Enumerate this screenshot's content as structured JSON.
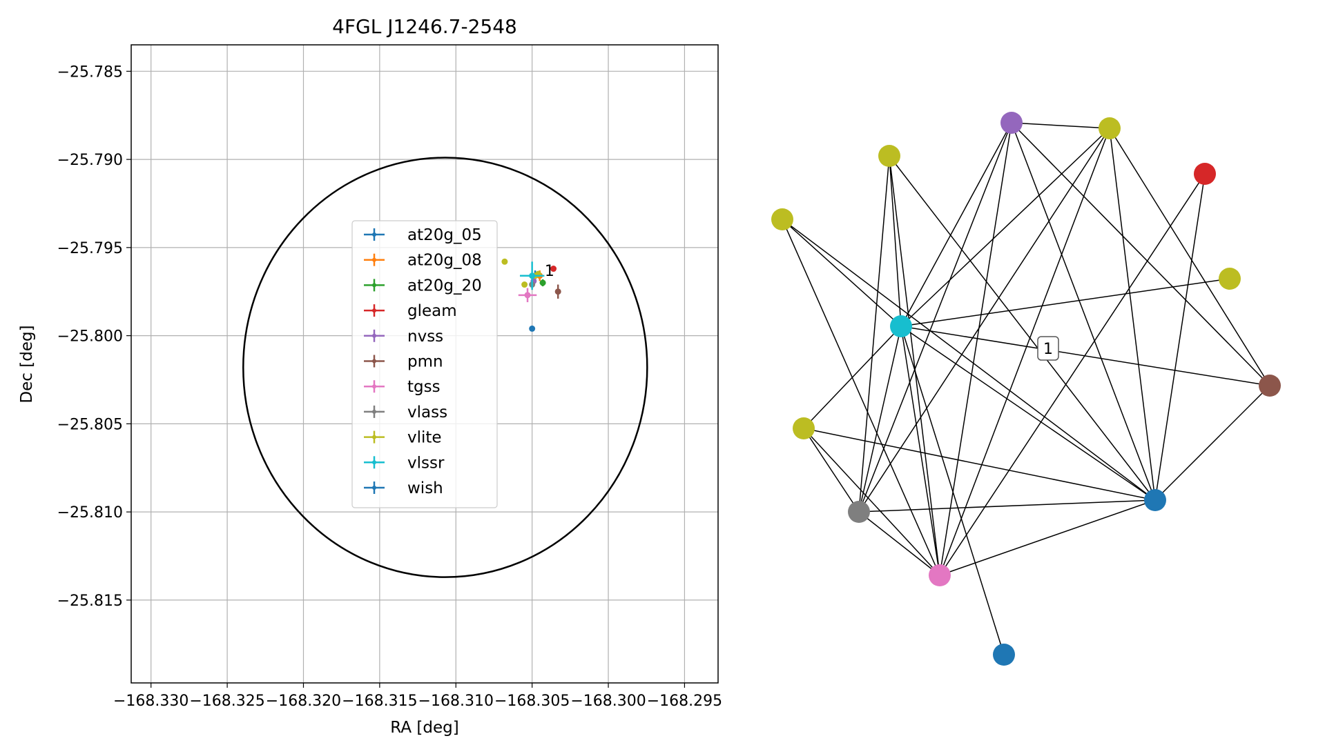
{
  "chart_data": [
    {
      "type": "scatter",
      "title": "4FGL J1246.7-2548",
      "xlabel": "RA [deg]",
      "ylabel": "Dec [deg]",
      "xlim": [
        -168.3313,
        -168.2928
      ],
      "ylim": [
        -25.8197,
        -25.7835
      ],
      "xticks": [
        -168.33,
        -168.325,
        -168.32,
        -168.315,
        -168.31,
        -168.305,
        -168.3,
        -168.295
      ],
      "xtick_labels": [
        "−168.330",
        "−168.325",
        "−168.320",
        "−168.315",
        "−168.310",
        "−168.305",
        "−168.300",
        "−168.295"
      ],
      "yticks": [
        -25.785,
        -25.79,
        -25.795,
        -25.8,
        -25.805,
        -25.81,
        -25.815
      ],
      "ytick_labels": [
        "−25.785",
        "−25.790",
        "−25.795",
        "−25.800",
        "−25.805",
        "−25.810",
        "−25.815"
      ],
      "grid": true,
      "legend_position": "center",
      "ellipse": {
        "center": [
          -168.3107,
          -25.8018
        ],
        "semi_axis_ra": 0.01325,
        "semi_axis_dec": 0.0119,
        "color": "#000000"
      },
      "series": [
        {
          "name": "at20g_05",
          "color": "#1f77b4",
          "x": [
            -168.3048
          ],
          "y": [
            -25.7966
          ],
          "xerr": [
            0.0003
          ],
          "yerr": [
            0.0003
          ]
        },
        {
          "name": "at20g_08",
          "color": "#ff7f0e",
          "x": [
            -168.3045
          ],
          "y": [
            -25.7966
          ],
          "xerr": [
            0.0003
          ],
          "yerr": [
            0.0003
          ]
        },
        {
          "name": "at20g_20",
          "color": "#2ca02c",
          "x": [
            -168.3043
          ],
          "y": [
            -25.797
          ],
          "xerr": [
            0.0002
          ],
          "yerr": [
            0.0002
          ]
        },
        {
          "name": "gleam",
          "color": "#d62728",
          "x": [
            -168.3036
          ],
          "y": [
            -25.7962
          ],
          "xerr": [
            0.0
          ],
          "yerr": [
            0.0
          ]
        },
        {
          "name": "nvss",
          "color": "#9467bd",
          "x": [
            -168.3049
          ],
          "y": [
            -25.7969
          ],
          "xerr": [
            0.0
          ],
          "yerr": [
            0.0
          ]
        },
        {
          "name": "pmn",
          "color": "#8c564b",
          "x": [
            -168.3033
          ],
          "y": [
            -25.7975
          ],
          "xerr": [
            0.0
          ],
          "yerr": [
            0.0004
          ]
        },
        {
          "name": "tgss",
          "color": "#e377c2",
          "x": [
            -168.3053
          ],
          "y": [
            -25.7977
          ],
          "xerr": [
            0.0006
          ],
          "yerr": [
            0.0004
          ]
        },
        {
          "name": "vlass",
          "color": "#7f7f7f",
          "x": [
            -168.305
          ],
          "y": [
            -25.7971
          ],
          "xerr": [
            0.0
          ],
          "yerr": [
            0.0
          ]
        },
        {
          "name": "vlite",
          "color": "#bcbd22",
          "x": [
            -168.3068,
            -168.3055,
            -168.3046,
            -168.3048
          ],
          "y": [
            -25.7958,
            -25.7971,
            -25.7965,
            -25.7966
          ],
          "xerr": [
            0.0,
            0.0,
            0.0,
            0.0
          ],
          "yerr": [
            0.0,
            0.0,
            0.0,
            0.0
          ]
        },
        {
          "name": "vlssr",
          "color": "#17becf",
          "x": [
            -168.305
          ],
          "y": [
            -25.7966
          ],
          "xerr": [
            0.0008
          ],
          "yerr": [
            0.0008
          ]
        },
        {
          "name": "wish",
          "color": "#1f77b4",
          "x": [
            -168.305
          ],
          "y": [
            -25.7996
          ],
          "xerr": [
            0.0
          ],
          "yerr": [
            0.0
          ]
        }
      ],
      "annotations": [
        {
          "text": "1",
          "x": -168.3039,
          "y": -25.7963
        }
      ]
    },
    {
      "type": "network",
      "nodes": [
        {
          "id": 0,
          "color": "#17becf"
        },
        {
          "id": 1,
          "color": "#9467bd"
        },
        {
          "id": 2,
          "color": "#bcbd22"
        },
        {
          "id": 3,
          "color": "#bcbd22"
        },
        {
          "id": 4,
          "color": "#d62728"
        },
        {
          "id": 5,
          "color": "#bcbd22"
        },
        {
          "id": 6,
          "color": "#bcbd22"
        },
        {
          "id": 7,
          "color": "#8c564b"
        },
        {
          "id": 8,
          "color": "#bcbd22"
        },
        {
          "id": 9,
          "color": "#1f77b4"
        },
        {
          "id": 10,
          "color": "#7f7f7f"
        },
        {
          "id": 11,
          "color": "#e377c2"
        },
        {
          "id": 12,
          "color": "#1f77b4"
        }
      ],
      "edges": [
        [
          0,
          6
        ],
        [
          0,
          1
        ],
        [
          0,
          2
        ],
        [
          0,
          3
        ],
        [
          0,
          5
        ],
        [
          0,
          7
        ],
        [
          0,
          9
        ],
        [
          0,
          10
        ],
        [
          0,
          11
        ],
        [
          0,
          12
        ],
        [
          0,
          8
        ],
        [
          1,
          2
        ],
        [
          1,
          9
        ],
        [
          1,
          10
        ],
        [
          1,
          11
        ],
        [
          1,
          7
        ],
        [
          2,
          9
        ],
        [
          2,
          10
        ],
        [
          2,
          11
        ],
        [
          2,
          7
        ],
        [
          3,
          10
        ],
        [
          3,
          11
        ],
        [
          3,
          9
        ],
        [
          4,
          9
        ],
        [
          4,
          11
        ],
        [
          5,
          9
        ],
        [
          5,
          11
        ],
        [
          7,
          9
        ],
        [
          8,
          9
        ],
        [
          8,
          10
        ],
        [
          8,
          11
        ],
        [
          9,
          10
        ],
        [
          9,
          11
        ],
        [
          10,
          11
        ]
      ],
      "label": "1"
    }
  ]
}
